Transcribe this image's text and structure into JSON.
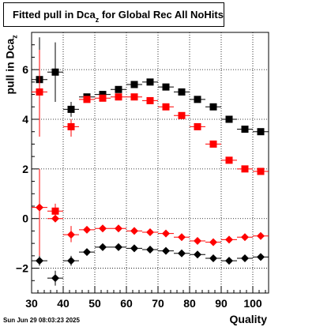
{
  "chart_data": {
    "type": "scatter",
    "title_main": "Fitted pull in Dca",
    "title_sub": "z",
    "title_rest": " for Global Rec All NoHits",
    "ylabel_main": "pull in Dca",
    "ylabel_sub": "z",
    "xlabel": "Quality",
    "xlim": [
      30,
      105
    ],
    "ylim": [
      -3.0,
      7.5
    ],
    "x_ticks": [
      30,
      40,
      50,
      60,
      70,
      80,
      90,
      100
    ],
    "y_ticks": [
      -2,
      0,
      2,
      4,
      6
    ],
    "grid": true,
    "series": [
      {
        "marker": "square",
        "color": "#000000",
        "points": [
          {
            "x": 32.5,
            "y": 5.6,
            "ylo": 3.5,
            "yhi": 7.3
          },
          {
            "x": 37.5,
            "y": 5.9,
            "ylo": 4.7,
            "yhi": 7.1
          },
          {
            "x": 42.5,
            "y": 4.4,
            "ylo": 4.1,
            "yhi": 4.7
          },
          {
            "x": 47.5,
            "y": 4.9
          },
          {
            "x": 52.5,
            "y": 5.0
          },
          {
            "x": 57.5,
            "y": 5.2
          },
          {
            "x": 62.5,
            "y": 5.4
          },
          {
            "x": 67.5,
            "y": 5.5
          },
          {
            "x": 72.5,
            "y": 5.3
          },
          {
            "x": 77.5,
            "y": 5.1
          },
          {
            "x": 82.5,
            "y": 4.8
          },
          {
            "x": 87.5,
            "y": 4.5
          },
          {
            "x": 92.5,
            "y": 4.0
          },
          {
            "x": 97.5,
            "y": 3.6
          },
          {
            "x": 102.5,
            "y": 3.5
          }
        ]
      },
      {
        "marker": "square",
        "color": "#ff0000",
        "points": [
          {
            "x": 32.5,
            "y": 5.1,
            "ylo": 3.3,
            "yhi": 6.8
          },
          {
            "x": 37.5,
            "y": 0.3,
            "ylo": 0.0,
            "yhi": 0.6
          },
          {
            "x": 42.5,
            "y": 3.7,
            "ylo": 3.3,
            "yhi": 4.0
          },
          {
            "x": 47.5,
            "y": 4.8
          },
          {
            "x": 52.5,
            "y": 4.85
          },
          {
            "x": 57.5,
            "y": 4.9
          },
          {
            "x": 62.5,
            "y": 4.9
          },
          {
            "x": 67.5,
            "y": 4.75
          },
          {
            "x": 72.5,
            "y": 4.5
          },
          {
            "x": 77.5,
            "y": 4.15
          },
          {
            "x": 82.5,
            "y": 3.7
          },
          {
            "x": 87.5,
            "y": 3.0
          },
          {
            "x": 92.5,
            "y": 2.35
          },
          {
            "x": 97.5,
            "y": 2.0
          },
          {
            "x": 102.5,
            "y": 1.9
          }
        ]
      },
      {
        "marker": "diamond",
        "color": "#ff0000",
        "points": [
          {
            "x": 32.5,
            "y": 0.45,
            "ylo": -1.5,
            "yhi": 2.0
          },
          {
            "x": 37.5,
            "y": 0.0
          },
          {
            "x": 42.5,
            "y": -0.65,
            "ylo": -0.95,
            "yhi": -0.3
          },
          {
            "x": 47.5,
            "y": -0.45
          },
          {
            "x": 52.5,
            "y": -0.4
          },
          {
            "x": 57.5,
            "y": -0.4
          },
          {
            "x": 62.5,
            "y": -0.5
          },
          {
            "x": 67.5,
            "y": -0.55
          },
          {
            "x": 72.5,
            "y": -0.6
          },
          {
            "x": 77.5,
            "y": -0.75
          },
          {
            "x": 82.5,
            "y": -0.9
          },
          {
            "x": 87.5,
            "y": -0.95
          },
          {
            "x": 92.5,
            "y": -0.85
          },
          {
            "x": 97.5,
            "y": -0.75
          },
          {
            "x": 102.5,
            "y": -0.7
          }
        ]
      },
      {
        "marker": "diamond",
        "color": "#000000",
        "points": [
          {
            "x": 32.5,
            "y": -1.7,
            "ylo": -1.9,
            "yhi": -1.5
          },
          {
            "x": 37.5,
            "y": -2.4,
            "ylo": -2.7,
            "yhi": -2.1
          },
          {
            "x": 42.5,
            "y": -1.7,
            "ylo": -1.9,
            "yhi": -1.5
          },
          {
            "x": 47.5,
            "y": -1.35
          },
          {
            "x": 52.5,
            "y": -1.15
          },
          {
            "x": 57.5,
            "y": -1.15
          },
          {
            "x": 62.5,
            "y": -1.2
          },
          {
            "x": 67.5,
            "y": -1.25
          },
          {
            "x": 72.5,
            "y": -1.3
          },
          {
            "x": 77.5,
            "y": -1.4
          },
          {
            "x": 82.5,
            "y": -1.45
          },
          {
            "x": 87.5,
            "y": -1.6
          },
          {
            "x": 92.5,
            "y": -1.7
          },
          {
            "x": 97.5,
            "y": -1.6
          },
          {
            "x": 102.5,
            "y": -1.55
          }
        ]
      }
    ]
  },
  "datestamp": "Sun Jun 29 08:03:23 2025"
}
